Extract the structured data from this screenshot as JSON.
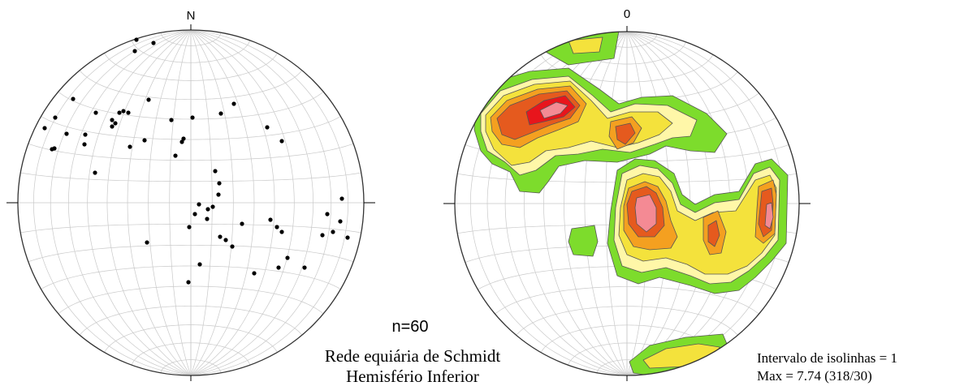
{
  "left_net": {
    "north_label": "N",
    "point_count": 60
  },
  "right_net": {
    "north_label": "0"
  },
  "sample_label": "n=60",
  "caption_line1": "Rede equiária de Schmidt",
  "caption_line2": "Hemisfério Inferior",
  "contour_interval": "Intervalo de isolinhas = 1",
  "max_label": "Max = 7.74  (318/30)",
  "colors": {
    "green": "#7ddc2c",
    "pale_yellow": "#fff7a8",
    "yellow": "#f4e23c",
    "orange": "#f4a020",
    "dark_orange": "#e55a1e",
    "red": "#e8151c",
    "pink": "#f48a94"
  }
}
